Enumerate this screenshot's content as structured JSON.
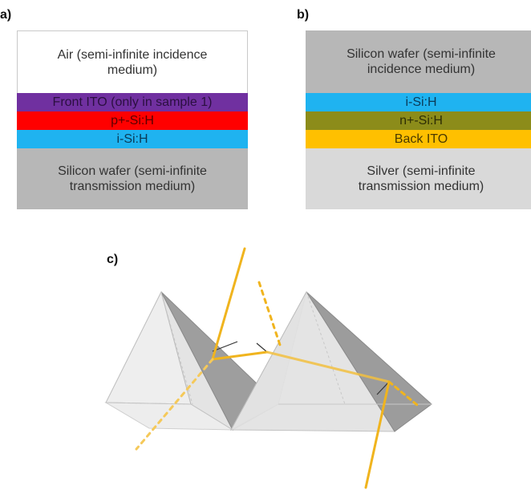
{
  "panels": {
    "a": {
      "label": "a)",
      "layers": [
        {
          "lines": [
            "Air (semi-infinite incidence",
            "medium)"
          ],
          "color": "#ffffff",
          "text_color": "#333333"
        },
        {
          "lines": [
            "Front ITO (only in sample 1)"
          ],
          "color": "#7030a0",
          "text_color": "#2b0f40"
        },
        {
          "lines": [
            "p+-Si:H"
          ],
          "color": "#ff0000",
          "text_color": "#5a0000"
        },
        {
          "lines": [
            "i-Si:H"
          ],
          "color": "#1fb3f0",
          "text_color": "#0b3a57"
        },
        {
          "lines": [
            "Silicon wafer (semi-infinite",
            "transmission medium)"
          ],
          "color": "#b7b7b7",
          "text_color": "#333333"
        }
      ]
    },
    "b": {
      "label": "b)",
      "layers": [
        {
          "lines": [
            "Silicon wafer (semi-infinite",
            "incidence medium)"
          ],
          "color": "#b7b7b7",
          "text_color": "#333333"
        },
        {
          "lines": [
            "i-Si:H"
          ],
          "color": "#1fb3f0",
          "text_color": "#0b3a57"
        },
        {
          "lines": [
            "n+-Si:H"
          ],
          "color": "#8c8c1a",
          "text_color": "#2e2e05"
        },
        {
          "lines": [
            "Back ITO"
          ],
          "color": "#ffc000",
          "text_color": "#4a3a00"
        },
        {
          "lines": [
            "Silver (semi-infinite",
            "transmission medium)"
          ],
          "color": "#d9d9d9",
          "text_color": "#333333"
        }
      ]
    },
    "c": {
      "label": "c)",
      "ray_color": "#f0b41e"
    }
  }
}
